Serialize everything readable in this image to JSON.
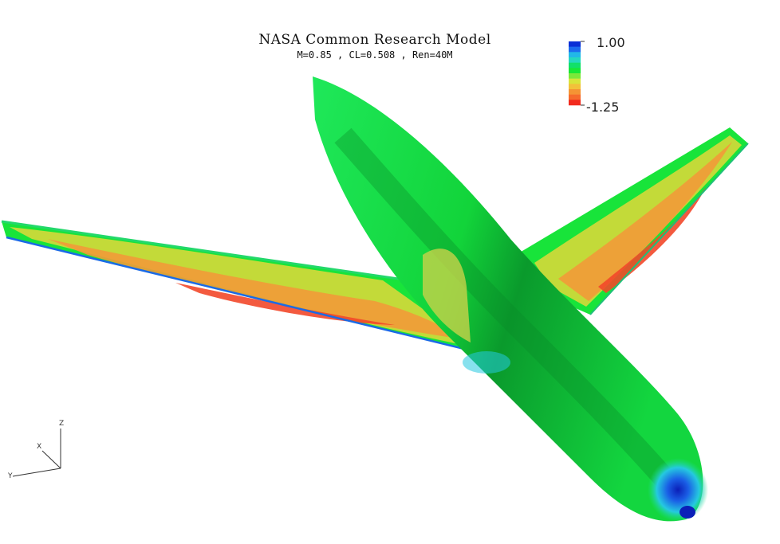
{
  "figure": {
    "title": "NASA Common Research Model",
    "subtitle": "M=0.85 ,  CL=0.508 , Ren=40M"
  },
  "colorbar": {
    "max_label": "1.00",
    "min_label": "-1.25",
    "colors": [
      "#0b2fd6",
      "#1c6bef",
      "#22b8e8",
      "#25d8c0",
      "#12e06a",
      "#17e835",
      "#7ce83a",
      "#d8e43a",
      "#f2c13a",
      "#f59434",
      "#f66b2c",
      "#f22a1e"
    ]
  },
  "axes_triad": {
    "x_label": "X",
    "y_label": "Y",
    "z_label": "Z"
  },
  "colors": {
    "surface_green": "#18e43a",
    "fuselage_dark": "#0fa82e",
    "pressure_yellow": "#d9d83c",
    "pressure_orange": "#f39a3a",
    "pressure_red": "#f2442a",
    "stagnation_blue": "#1545e0"
  }
}
